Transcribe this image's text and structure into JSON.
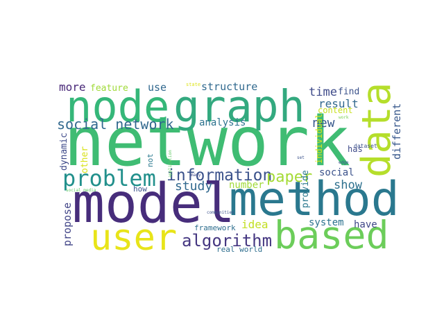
{
  "words": [
    {
      "text": "network",
      "color": "#3fbc73"
    },
    {
      "text": "node",
      "color": "#35b779"
    },
    {
      "text": "graph",
      "color": "#33a97f"
    },
    {
      "text": "data",
      "color": "#b5de2b"
    },
    {
      "text": "model",
      "color": "#472d7b"
    },
    {
      "text": "method",
      "color": "#2a788e"
    },
    {
      "text": "user",
      "color": "#e8e419"
    },
    {
      "text": "based",
      "color": "#6ccd5a"
    },
    {
      "text": "problem",
      "color": "#22908c"
    },
    {
      "text": "information",
      "color": "#3b528b"
    },
    {
      "text": "paper",
      "color": "#a5db36"
    },
    {
      "text": "algorithm",
      "color": "#453781"
    },
    {
      "text": "study",
      "color": "#31688e"
    },
    {
      "text": "number",
      "color": "#a0da39"
    },
    {
      "text": "show",
      "color": "#2d708e"
    },
    {
      "text": "social network",
      "color": "#31688e"
    },
    {
      "text": "more",
      "color": "#482878"
    },
    {
      "text": "feature",
      "color": "#a0da39"
    },
    {
      "text": "use",
      "color": "#31688e"
    },
    {
      "text": "structure",
      "color": "#30698e"
    },
    {
      "text": "state",
      "color": "#dde318"
    },
    {
      "text": "time",
      "color": "#3e4a89"
    },
    {
      "text": "find",
      "color": "#3b528b"
    },
    {
      "text": "result",
      "color": "#31688e"
    },
    {
      "text": "content",
      "color": "#c8e020"
    },
    {
      "text": "new",
      "color": "#38588c"
    },
    {
      "text": "work",
      "color": "#7ad151"
    },
    {
      "text": "dataset",
      "color": "#3b528b"
    },
    {
      "text": "different",
      "color": "#38588c"
    },
    {
      "text": "analysis",
      "color": "#2c728e"
    },
    {
      "text": "dynamic",
      "color": "#3e4989"
    },
    {
      "text": "other",
      "color": "#d8e219"
    },
    {
      "text": "application",
      "color": "#5ec962"
    },
    {
      "text": "not",
      "color": "#2a788e"
    },
    {
      "text": "many",
      "color": "#3e4989"
    },
    {
      "text": "set",
      "color": "#3b528b"
    },
    {
      "text": "individual",
      "color": "#d8e219"
    },
    {
      "text": "provide",
      "color": "#2a788e"
    },
    {
      "text": "edge",
      "color": "#3b528b"
    },
    {
      "text": "social",
      "color": "#3b528b"
    },
    {
      "text": "has",
      "color": "#3e4a89"
    },
    {
      "text": "propose",
      "color": "#414487"
    },
    {
      "text": "how",
      "color": "#3b528b"
    },
    {
      "text": "social media",
      "color": "#5ec962"
    },
    {
      "text": "idea",
      "color": "#c2df23"
    },
    {
      "text": "framework",
      "color": "#2e6e8e"
    },
    {
      "text": "communities",
      "color": "#3b528b"
    },
    {
      "text": "system",
      "color": "#2c728e"
    },
    {
      "text": "have",
      "color": "#3f4788"
    },
    {
      "text": "real world",
      "color": "#2e6e8e"
    }
  ]
}
